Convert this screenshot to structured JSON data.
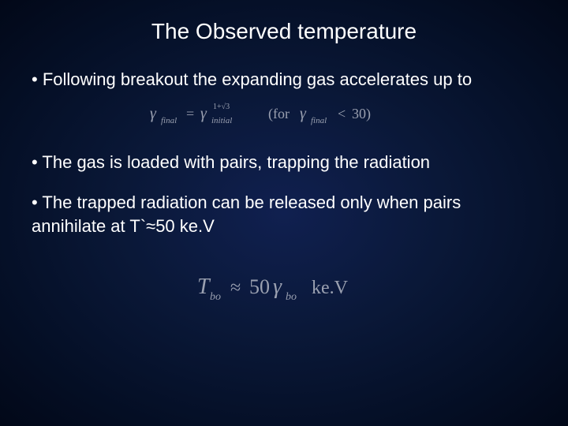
{
  "slide": {
    "title": "The Observed temperature",
    "bullets": [
      "• Following breakout the expanding gas accelerates up to",
      "• The gas is loaded with pairs, trapping the radiation",
      "• The trapped radiation can be released only when pairs annihilate at T`≈50 ke.V"
    ],
    "formula1": {
      "gamma_final_label": "γ",
      "final_sub": "final",
      "equals": "=",
      "gamma_initial_label": "γ",
      "initial_sub": "initial",
      "exponent_num": "1+√3",
      "for_text": "(for",
      "gamma2": "γ",
      "final_sub2": "final",
      "lt": "<",
      "thirty": "30)",
      "color": "#9aa0b0",
      "italic_color": "#9aa0b0",
      "fontsize": 18
    },
    "formula2": {
      "T": "T",
      "bo_sub": "bo",
      "approx": "≈",
      "fifty": "50",
      "gamma": "γ",
      "bo_sub2": "bo",
      "unit": "ke.V",
      "color": "#9aa0b0",
      "fontsize": 26
    },
    "colors": {
      "text": "#ffffff",
      "formula": "#9aa0b0",
      "bg_center": "#102050",
      "bg_edge": "#020818"
    }
  }
}
